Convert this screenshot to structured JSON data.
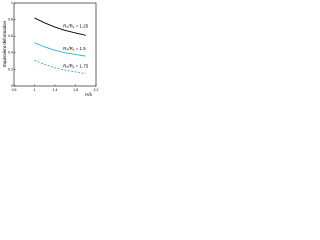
{
  "chart_data": {
    "type": "line",
    "y_label": "Equivalent deformation",
    "x_label": "H/λ",
    "xlim": [
      0.6,
      2.2
    ],
    "xticks": [
      0.6,
      1,
      1.4,
      1.8,
      2.2
    ],
    "ylim": [
      0,
      1
    ],
    "yticks": [
      0,
      0.2,
      0.4,
      0.6,
      0.8,
      1
    ],
    "series": [
      {
        "name": "R₀/R₁ = 1.25",
        "color": "#000000",
        "dash": false,
        "x": [
          1.0,
          1.2,
          1.4,
          1.6,
          1.8,
          2.0
        ],
        "values": [
          0.82,
          0.76,
          0.71,
          0.67,
          0.64,
          0.61
        ]
      },
      {
        "name": "R₀/R₁ = 1.5",
        "color": "#29b6d8",
        "dash": false,
        "x": [
          1.0,
          1.2,
          1.4,
          1.6,
          1.8,
          2.0
        ],
        "values": [
          0.52,
          0.47,
          0.43,
          0.4,
          0.38,
          0.36
        ]
      },
      {
        "name": "R₀/R₁ = 1.75",
        "color": "#29b6d8",
        "dash": true,
        "x": [
          1.0,
          1.2,
          1.4,
          1.6,
          1.8,
          2.0
        ],
        "values": [
          0.31,
          0.26,
          0.22,
          0.19,
          0.17,
          0.15
        ]
      }
    ]
  }
}
